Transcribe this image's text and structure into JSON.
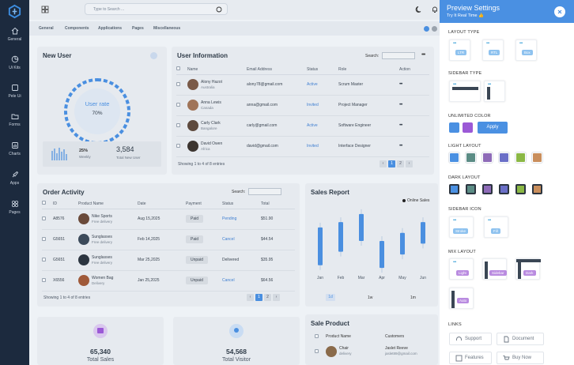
{
  "search": {
    "placeholder": "Type to Search ..."
  },
  "nav": [
    {
      "label": "General"
    },
    {
      "label": "Ui Kits"
    },
    {
      "label": "Pele Ui"
    },
    {
      "label": "Forms"
    },
    {
      "label": "Charts"
    },
    {
      "label": "Apps"
    },
    {
      "label": "Pages"
    }
  ],
  "menu": [
    "General",
    "Components",
    "Applications",
    "Pages",
    "Miscellaneous"
  ],
  "new_user": {
    "title": "New User",
    "rate_label": "User rate",
    "rate_value": "70%",
    "rate_fraction": 0.7,
    "stat1_value": "25%",
    "stat1_label": "Weekly",
    "stat2_value": "3,584",
    "stat2_label": "Total New User"
  },
  "user_info": {
    "title": "User Information",
    "search_label": "Search:",
    "columns": [
      "Name",
      "Email Address",
      "Status",
      "Role",
      "Action"
    ],
    "rows": [
      {
        "name": "Alony Hazot",
        "place": "Australia",
        "email": "alony78@gmail.com",
        "status": "Active",
        "role": "Scrum Master",
        "action": "•••"
      },
      {
        "name": "Anna Lewis",
        "place": "Canada",
        "email": "anna@gmail.com",
        "status": "Invited",
        "role": "Project Manager",
        "action": "•••"
      },
      {
        "name": "Carly Clark",
        "place": "Bangalore",
        "email": "carly@gmail.com",
        "status": "Active",
        "role": "Software Engineer",
        "action": "•••"
      },
      {
        "name": "David Owen",
        "place": "Africa",
        "email": "david@gmail.com",
        "status": "Invited",
        "role": "Interface Designer",
        "action": "•••"
      }
    ],
    "footer": "Showing 1 to 4 of 8 entries",
    "pages": [
      "‹",
      "1",
      "2",
      "›"
    ]
  },
  "order_activity": {
    "title": "Order Activity",
    "search_label": "Search:",
    "columns": [
      "ID",
      "Product Name",
      "Date",
      "Payment",
      "Status",
      "Total"
    ],
    "rows": [
      {
        "id": "A8576",
        "product": "Nike Sports",
        "delivery": "Free delivery",
        "date": "Aug 15,2025",
        "payment": "Paid",
        "status": "Pending",
        "total": "$51.90"
      },
      {
        "id": "G5651",
        "product": "Sunglasses",
        "delivery": "Free delivery",
        "date": "Feb 14,2025",
        "payment": "Paid",
        "status": "Cancel",
        "total": "$44.54"
      },
      {
        "id": "G5651",
        "product": "Sunglasses",
        "delivery": "Free delivery",
        "date": "Mar 25,2025",
        "payment": "Unpaid",
        "status": "Delivered",
        "total": "$35.95"
      },
      {
        "id": "X6556",
        "product": "Women Bag",
        "delivery": "Delivery",
        "date": "Jan 25,2025",
        "payment": "Unpaid",
        "status": "Cancel",
        "total": "$64.56"
      }
    ],
    "footer": "Showing 1 to 4 of 8 entries",
    "pages": [
      "‹",
      "1",
      "2",
      "›"
    ]
  },
  "sales_report": {
    "title": "Sales Report",
    "legend": "Online Sales",
    "ranges": [
      "1d",
      "1w",
      "1m"
    ],
    "chart_data": {
      "type": "bar",
      "categories": [
        "Jan",
        "Feb",
        "Mar",
        "Apr",
        "May",
        "Jun"
      ],
      "series": [
        {
          "name": "Online Sales",
          "ranges": [
            [
              15,
              85
            ],
            [
              40,
              95
            ],
            [
              60,
              110
            ],
            [
              10,
              60
            ],
            [
              35,
              75
            ],
            [
              55,
              95
            ]
          ]
        }
      ],
      "ylim": [
        0,
        120
      ]
    }
  },
  "total_sales": {
    "value": "65,340",
    "label": "Total Sales"
  },
  "total_visitor": {
    "value": "54,568",
    "label": "Total Visitor"
  },
  "sale_product": {
    "title": "Sale Product",
    "columns": [
      "Product Name",
      "Customers"
    ],
    "rows": [
      {
        "product": "Chair",
        "delivery": "delivery",
        "customer": "Jaslet Reeve",
        "email": "jaslet89@gmail.com"
      }
    ]
  },
  "panel": {
    "title": "Preview Settings",
    "subtitle": "Try It Real Time 👍",
    "layout_type": "LAYOUT TYPE",
    "layout_options": [
      "LTR",
      "RTL",
      "Box"
    ],
    "sidebar_type": "SIDEBAR TYPE",
    "unlimited_color": "UNLIMITED COLOR",
    "apply": "Apply",
    "light_layout": "LIGHT LAYOUT",
    "dark_layout": "DARK LAYOUT",
    "sidebar_icon": "SIDEBAR ICON",
    "sidebar_icon_options": [
      "Stroke",
      "Fill"
    ],
    "mix_layout": "MIX LAYOUT",
    "mix_options": [
      "Light",
      "Sidebar",
      "Dark",
      "Auto"
    ],
    "links": "LINKS",
    "link_buttons": [
      "Support",
      "Document",
      "Features",
      "Buy Now"
    ],
    "light_colors": [
      "#4a90e2",
      "#5b8c85",
      "#8e6bb8",
      "#6a6fc7",
      "#8bb845",
      "#c98e5c"
    ],
    "dark_colors": [
      "#4a90e2",
      "#5b8c85",
      "#8e6bb8",
      "#6a6fc7",
      "#8bb845",
      "#c98e5c"
    ],
    "custom_colors": [
      "#4a90e2",
      "#9b59d6"
    ]
  }
}
